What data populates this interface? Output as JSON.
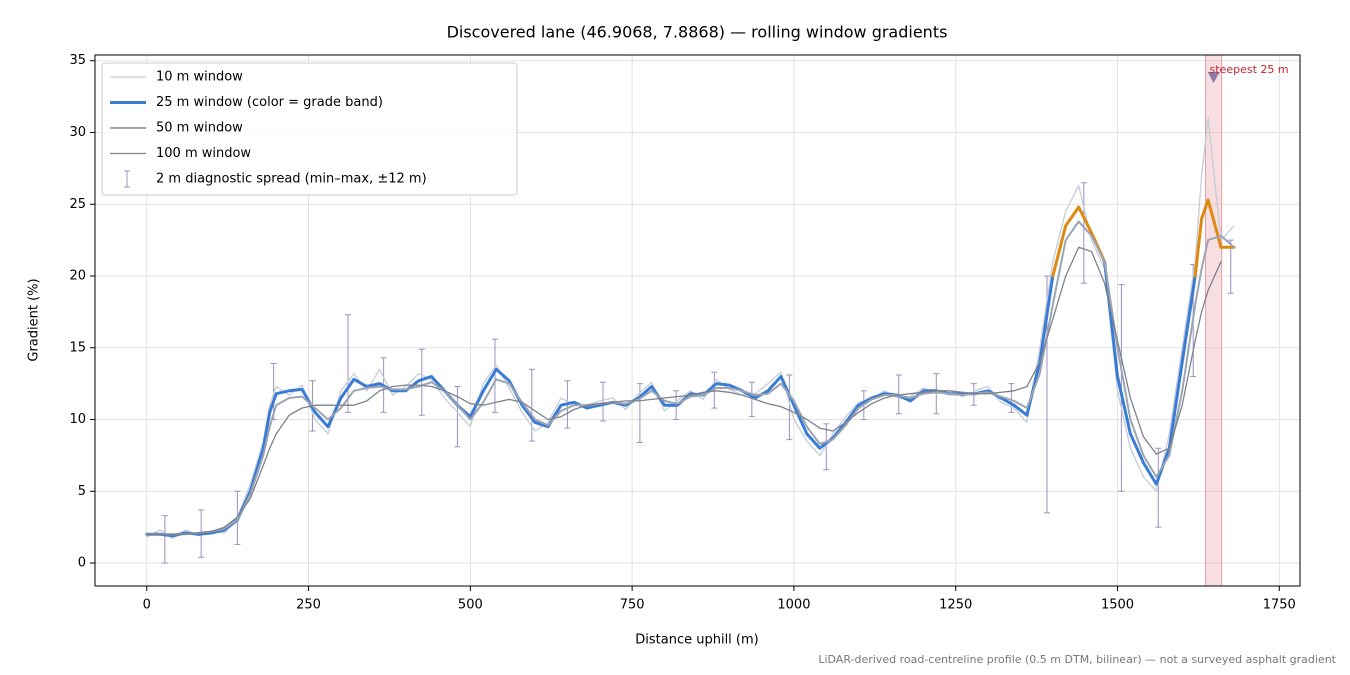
{
  "chart_data": {
    "type": "line",
    "title": "Discovered lane (46.9068, 7.8868) — rolling window gradients",
    "x_label": "Distance uphill (m)",
    "y_label": "Gradient (%)",
    "note": "LiDAR-derived road-centreline profile (0.5 m DTM, bilinear) — not a surveyed asphalt gradient",
    "xlim": [
      -80,
      1782
    ],
    "ylim": [
      -1.6,
      35.4
    ],
    "xticks": [
      0,
      250,
      500,
      750,
      1000,
      1250,
      1500,
      1750
    ],
    "yticks": [
      0,
      5,
      10,
      15,
      20,
      25,
      30,
      35
    ],
    "grid": true,
    "legend": "upper left",
    "x": [
      0,
      20,
      40,
      60,
      80,
      100,
      120,
      140,
      160,
      180,
      190,
      200,
      220,
      240,
      260,
      280,
      300,
      320,
      340,
      360,
      380,
      400,
      420,
      440,
      460,
      480,
      500,
      520,
      540,
      560,
      580,
      600,
      620,
      640,
      660,
      680,
      700,
      720,
      740,
      760,
      780,
      800,
      820,
      840,
      860,
      880,
      900,
      920,
      940,
      960,
      980,
      1000,
      1020,
      1040,
      1060,
      1080,
      1100,
      1120,
      1140,
      1160,
      1180,
      1200,
      1220,
      1240,
      1260,
      1280,
      1300,
      1320,
      1340,
      1360,
      1380,
      1400,
      1420,
      1440,
      1460,
      1480,
      1500,
      1520,
      1540,
      1560,
      1580,
      1600,
      1620,
      1630,
      1640,
      1660,
      1680
    ],
    "series": [
      {
        "name": "10 m window",
        "color": "#c4ccd8",
        "width": 1.3,
        "values": [
          1.8,
          2.3,
          1.7,
          2.3,
          1.9,
          2.2,
          2.1,
          3.2,
          5.5,
          8.5,
          11,
          12.3,
          11.7,
          12.4,
          10,
          9,
          12,
          13.2,
          12,
          13.5,
          11.7,
          12.3,
          13.2,
          12.8,
          11.5,
          10.5,
          9.5,
          12.5,
          13.8,
          12.2,
          10.5,
          9.2,
          9.8,
          11.5,
          11,
          11,
          11.3,
          11.5,
          10.7,
          11.8,
          12.6,
          10.6,
          11.3,
          12,
          11.4,
          12.8,
          12.1,
          11.7,
          11.8,
          12.5,
          13.3,
          10,
          8.5,
          7.5,
          9,
          10.2,
          11.2,
          11.4,
          12,
          11.5,
          11.6,
          12.2,
          11.8,
          12,
          11.6,
          12,
          12.3,
          11.2,
          10.8,
          9.8,
          15,
          21,
          24.5,
          26.3,
          22.5,
          20.5,
          12,
          8,
          6,
          5,
          9,
          15,
          21,
          27,
          31,
          22.5,
          23.5
        ]
      },
      {
        "name": "25 m window (color = grade band)",
        "color": "#3a7bd5",
        "width": 3,
        "band_colors": [
          {
            "from": 20,
            "color": "#dd8a12"
          },
          {
            "from": 25,
            "color": "#c8232c"
          }
        ],
        "values": [
          2,
          2,
          1.9,
          2.1,
          2,
          2.1,
          2.3,
          3,
          5,
          8,
          10.5,
          11.8,
          12,
          12.1,
          10.5,
          9.5,
          11.5,
          12.8,
          12.3,
          12.5,
          12,
          12,
          12.7,
          13,
          12,
          11,
          10.2,
          12,
          13.5,
          12.7,
          11,
          9.8,
          9.5,
          11,
          11.2,
          10.8,
          11,
          11.2,
          11,
          11.5,
          12.3,
          11,
          11,
          11.8,
          11.7,
          12.5,
          12.4,
          12,
          11.5,
          12,
          13,
          11,
          9,
          8,
          8.7,
          9.8,
          11,
          11.5,
          11.8,
          11.7,
          11.3,
          12,
          12,
          11.8,
          11.8,
          11.8,
          12,
          11.5,
          11,
          10.3,
          14,
          20,
          23.5,
          24.8,
          23,
          21,
          13,
          9,
          7,
          5.5,
          8,
          14,
          20,
          24,
          25.3,
          22,
          22
        ]
      },
      {
        "name": "50 m window",
        "color": "#9ba5b3",
        "width": 2,
        "values": [
          2,
          2,
          2,
          2,
          2.1,
          2.2,
          2.4,
          3,
          4.8,
          7.5,
          9.5,
          11,
          11.5,
          11.6,
          10.8,
          10,
          10.8,
          12,
          12.2,
          12.3,
          12.1,
          12.1,
          12.3,
          12.6,
          12,
          11,
          10,
          11.2,
          12.8,
          12.5,
          11.2,
          10,
          9.6,
          10.6,
          11,
          11,
          11.1,
          11.2,
          11.1,
          11.4,
          12,
          11.3,
          11.1,
          11.6,
          11.7,
          12.2,
          12.2,
          12,
          11.7,
          11.8,
          12.5,
          11.3,
          9.5,
          8.3,
          8.6,
          9.6,
          10.8,
          11.4,
          11.7,
          11.7,
          11.5,
          11.8,
          11.9,
          11.8,
          11.7,
          11.8,
          11.9,
          11.6,
          11.3,
          10.8,
          13.2,
          18,
          22.5,
          23.8,
          22.8,
          21,
          15,
          10,
          7.5,
          6,
          7.5,
          12,
          18,
          20.5,
          22.5,
          22.8,
          22
        ]
      },
      {
        "name": "100 m window",
        "color": "#7d828d",
        "width": 1.3,
        "values": [
          2,
          2,
          2,
          2,
          2.1,
          2.2,
          2.5,
          3.2,
          4.5,
          6.8,
          8,
          9,
          10.3,
          10.8,
          11,
          11,
          11,
          11,
          11.3,
          12,
          12.3,
          12.4,
          12.4,
          12.3,
          12,
          11.6,
          11.1,
          11,
          11.2,
          11.4,
          11.2,
          10.6,
          10,
          10.2,
          10.7,
          11,
          11.1,
          11.2,
          11.3,
          11.3,
          11.4,
          11.5,
          11.6,
          11.7,
          11.9,
          12,
          11.9,
          11.7,
          11.4,
          11.1,
          10.9,
          10.5,
          10,
          9.4,
          9.2,
          9.8,
          10.5,
          11.1,
          11.5,
          11.7,
          11.8,
          11.9,
          12,
          12,
          11.9,
          11.8,
          11.8,
          11.9,
          12,
          12.3,
          14,
          17,
          20,
          22,
          21.7,
          19.5,
          15.5,
          11.5,
          8.8,
          7.6,
          8,
          11,
          15.5,
          17.5,
          19,
          21,
          null
        ]
      }
    ],
    "errorbars": {
      "name": "2 m diagnostic spread (min–max, ±12 m)",
      "color": "#9b8fbf",
      "x": [
        28,
        84,
        140,
        196,
        256,
        311,
        366,
        425,
        480,
        538,
        595,
        650,
        705,
        762,
        818,
        877,
        935,
        993,
        1050,
        1108,
        1162,
        1220,
        1278,
        1336,
        1391,
        1448,
        1506,
        1563,
        1617,
        1675
      ],
      "low": [
        0,
        0.4,
        1.3,
        10,
        9.2,
        10.5,
        10.5,
        10.3,
        8.1,
        10.5,
        8.5,
        9.4,
        9.9,
        8.4,
        10,
        10.8,
        10.2,
        8.6,
        6.5,
        10,
        10.4,
        10.4,
        11,
        10.5,
        3.5,
        19.5,
        5,
        2.5,
        13,
        18.8
      ],
      "high": [
        3.3,
        3.7,
        5,
        13.9,
        12.7,
        17.3,
        14.3,
        14.9,
        12.3,
        15.6,
        13.5,
        12.7,
        12.6,
        12.5,
        12,
        13.3,
        12.6,
        13.1,
        9.7,
        12,
        13.1,
        13.2,
        12.5,
        12.5,
        20,
        26.5,
        19.4,
        8,
        20.8,
        22.5
      ]
    },
    "highlight": {
      "label": "steepest 25 m",
      "x0": 1636,
      "x1": 1661,
      "marker_y": 33.8,
      "color": "#e8a0a8",
      "marker_color": "#8a7aa8",
      "label_color": "#c8232c"
    }
  }
}
